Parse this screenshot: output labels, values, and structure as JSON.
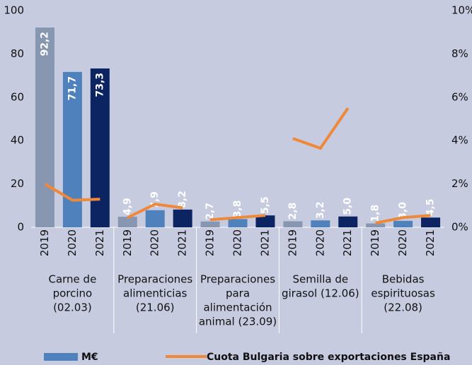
{
  "chart_data": {
    "type": "bar",
    "ylim": [
      0,
      100
    ],
    "yticks": [
      0,
      20,
      40,
      60,
      80,
      100
    ],
    "y2lim": [
      0,
      10
    ],
    "y2ticks": [
      {
        "value": 0,
        "label": "0%"
      },
      {
        "value": 2,
        "label": "2%"
      },
      {
        "value": 4,
        "label": "4%"
      },
      {
        "value": 6,
        "label": "6%"
      },
      {
        "value": 8,
        "label": "8%"
      },
      {
        "value": 10,
        "label": "10%"
      }
    ],
    "year_colors": [
      "#8797b2",
      "#4f81bd",
      "#0d2463"
    ],
    "series": [
      {
        "name": "M€",
        "color": "#4f81bd"
      },
      {
        "name": "Cuota Bulgaria sobre exportaciones España",
        "color": "#f0883a",
        "axis": "y2"
      }
    ],
    "groups": [
      {
        "label_lines": [
          "Carne de",
          "porcino",
          "(02.03)"
        ],
        "categories": [
          "2019",
          "2020",
          "2021"
        ],
        "values": [
          92.2,
          71.7,
          73.3
        ],
        "value_labels": [
          "92,2",
          "71,7",
          "73,3"
        ],
        "share": [
          2.0,
          1.25,
          1.3
        ]
      },
      {
        "label_lines": [
          "Preparaciones",
          "alimenticias",
          "(21.06)"
        ],
        "categories": [
          "2019",
          "2020",
          "2021"
        ],
        "values": [
          4.9,
          7.9,
          8.2
        ],
        "value_labels": [
          "4,9",
          "7,9",
          "8,2"
        ],
        "share": [
          0.45,
          1.07,
          0.9
        ]
      },
      {
        "label_lines": [
          "Preparaciones",
          "para",
          "alimentación",
          "animal  (23.09)"
        ],
        "categories": [
          "2019",
          "2020",
          "2021"
        ],
        "values": [
          2.7,
          3.8,
          5.5
        ],
        "value_labels": [
          "2,7",
          "3,8",
          "5,5"
        ],
        "share": [
          0.35,
          0.45,
          0.55
        ]
      },
      {
        "label_lines": [
          "Semilla de",
          "girasol (12.06)"
        ],
        "categories": [
          "2019",
          "2020",
          "2021"
        ],
        "values": [
          2.8,
          3.2,
          5.0
        ],
        "value_labels": [
          "2,8",
          "3,2",
          "5,0"
        ],
        "share": [
          4.1,
          3.65,
          5.5
        ]
      },
      {
        "label_lines": [
          "Bebidas",
          "espirituosas",
          "(22.08)"
        ],
        "categories": [
          "2019",
          "2020",
          "2021"
        ],
        "values": [
          1.8,
          3.0,
          4.5
        ],
        "value_labels": [
          "1,8",
          "3,0",
          "4,5"
        ],
        "share": [
          0.2,
          0.45,
          0.55
        ]
      }
    ]
  }
}
